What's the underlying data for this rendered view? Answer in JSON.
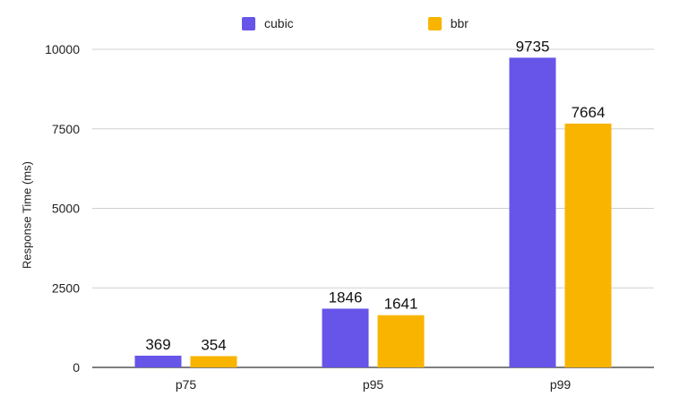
{
  "chart_data": {
    "type": "bar",
    "categories": [
      "p75",
      "p95",
      "p99"
    ],
    "series": [
      {
        "name": "cubic",
        "values": [
          369,
          1846,
          9735
        ],
        "color": "#6655e8"
      },
      {
        "name": "bbr",
        "values": [
          354,
          1641,
          7664
        ],
        "color": "#f9b400"
      }
    ],
    "ylabel": "Response Time (ms)",
    "xlabel": "",
    "ylim": [
      0,
      10000
    ],
    "yticks": [
      "0",
      "2500",
      "5000",
      "7500",
      "10000"
    ],
    "grid": true,
    "legend": "top-center"
  }
}
